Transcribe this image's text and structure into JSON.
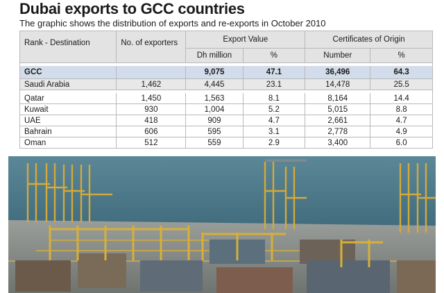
{
  "title": "Dubai exports to GCC countries",
  "subtitle": "The graphic shows the distribution of exports and re-exports in October 2010",
  "table": {
    "headers": {
      "rank_destination": "Rank - Destination",
      "num_exporters": "No. of exporters",
      "export_value": "Export Value",
      "certificates": "Certificates of Origin",
      "dh_million": "Dh million",
      "pct_export": "%",
      "number": "Number",
      "pct_cert": "%"
    },
    "rows": [
      {
        "dest": "GCC",
        "exporters": "",
        "value": "9,075",
        "value_pct": "47.1",
        "certs": "36,496",
        "certs_pct": "64.3"
      },
      {
        "dest": "Saudi Arabia",
        "exporters": "1,462",
        "value": "4,445",
        "value_pct": "23.1",
        "certs": "14,478",
        "certs_pct": "25.5"
      },
      {
        "dest": "Qatar",
        "exporters": "1,450",
        "value": "1,563",
        "value_pct": "8.1",
        "certs": "8,164",
        "certs_pct": "14.4"
      },
      {
        "dest": "Kuwait",
        "exporters": "930",
        "value": "1,004",
        "value_pct": "5.2",
        "certs": "5,015",
        "certs_pct": "8.8"
      },
      {
        "dest": "UAE",
        "exporters": "418",
        "value": "909",
        "value_pct": "4.7",
        "certs": "2,661",
        "certs_pct": "4.7"
      },
      {
        "dest": "Bahrain",
        "exporters": "606",
        "value": "595",
        "value_pct": "3.1",
        "certs": "2,778",
        "certs_pct": "4.9"
      },
      {
        "dest": "Oman",
        "exporters": "512",
        "value": "559",
        "value_pct": "2.9",
        "certs": "3,400",
        "certs_pct": "6.0"
      }
    ]
  },
  "photo": {
    "subject": "port-cranes-container-terminal",
    "colors": {
      "sea": "#4f7d8e",
      "sky": "#6a8fa0",
      "crane": "#d9b23a",
      "ground": "#8a8f8c"
    }
  }
}
